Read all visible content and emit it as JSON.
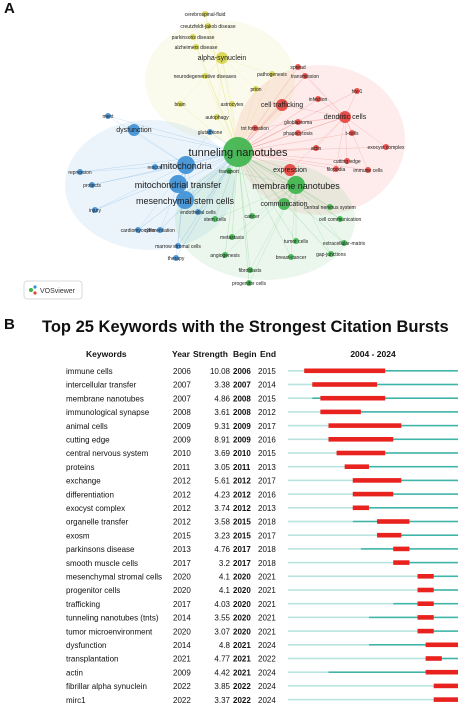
{
  "panel_a": {
    "letter": "A",
    "brand": "VOSviewer",
    "nodes": [
      {
        "label": "tunneling nanotubes",
        "cluster": "green",
        "size": 3
      },
      {
        "label": "membrane nanotubes",
        "cluster": "green",
        "size": 2
      },
      {
        "label": "mitochondria",
        "cluster": "blue",
        "size": 2
      },
      {
        "label": "mitochondrial transfer",
        "cluster": "blue",
        "size": 2
      },
      {
        "label": "mesenchymal stem cells",
        "cluster": "blue",
        "size": 2
      },
      {
        "label": "alpha-synuclein",
        "cluster": "yellow",
        "size": 1
      },
      {
        "label": "cerebrospinal-fluid",
        "cluster": "yellow",
        "size": 0
      },
      {
        "label": "creutzfeldt-jakob disease",
        "cluster": "yellow",
        "size": 0
      },
      {
        "label": "parkinsons disease",
        "cluster": "yellow",
        "size": 0
      },
      {
        "label": "alzheimers disease",
        "cluster": "yellow",
        "size": 0
      },
      {
        "label": "neurodegenerative diseases",
        "cluster": "yellow",
        "size": 0
      },
      {
        "label": "pathogenesis",
        "cluster": "yellow",
        "size": 0
      },
      {
        "label": "prion",
        "cluster": "yellow",
        "size": 0
      },
      {
        "label": "brain",
        "cluster": "yellow",
        "size": 0
      },
      {
        "label": "astrocytes",
        "cluster": "yellow",
        "size": 0
      },
      {
        "label": "autophagy",
        "cluster": "yellow",
        "size": 0
      },
      {
        "label": "spread",
        "cluster": "red",
        "size": 0
      },
      {
        "label": "transmission",
        "cluster": "red",
        "size": 0
      },
      {
        "label": "hiv-1",
        "cluster": "red",
        "size": 0
      },
      {
        "label": "infection",
        "cluster": "red",
        "size": 0
      },
      {
        "label": "cell trafficking",
        "cluster": "red",
        "size": 1
      },
      {
        "label": "dendritic cells",
        "cluster": "red",
        "size": 1
      },
      {
        "label": "t-cells",
        "cluster": "red",
        "size": 0
      },
      {
        "label": "exocyst complex",
        "cluster": "red",
        "size": 0
      },
      {
        "label": "cutting edge",
        "cluster": "red",
        "size": 0
      },
      {
        "label": "immune cells",
        "cluster": "red",
        "size": 0
      },
      {
        "label": "expression",
        "cluster": "red",
        "size": 1
      },
      {
        "label": "filopodia",
        "cluster": "red",
        "size": 0
      },
      {
        "label": "phagocytosis",
        "cluster": "red",
        "size": 0
      },
      {
        "label": "tnt formation",
        "cluster": "red",
        "size": 0
      },
      {
        "label": "glioblastoma",
        "cluster": "red",
        "size": 0
      },
      {
        "label": "actin",
        "cluster": "red",
        "size": 0
      },
      {
        "label": "transport",
        "cluster": "green",
        "size": 0
      },
      {
        "label": "communication",
        "cluster": "green",
        "size": 1
      },
      {
        "label": "central nervous system",
        "cluster": "green",
        "size": 0
      },
      {
        "label": "cell communication",
        "cluster": "green",
        "size": 0
      },
      {
        "label": "extracellular-matrix",
        "cluster": "green",
        "size": 0
      },
      {
        "label": "gap-junctions",
        "cluster": "green",
        "size": 0
      },
      {
        "label": "breast-cancer",
        "cluster": "green",
        "size": 0
      },
      {
        "label": "tumor cells",
        "cluster": "green",
        "size": 0
      },
      {
        "label": "cancer",
        "cluster": "green",
        "size": 0
      },
      {
        "label": "stem cells",
        "cluster": "green",
        "size": 0
      },
      {
        "label": "metastasis",
        "cluster": "green",
        "size": 0
      },
      {
        "label": "angiogenesis",
        "cluster": "green",
        "size": 0
      },
      {
        "label": "fibroblasts",
        "cluster": "green",
        "size": 0
      },
      {
        "label": "progenitor cells",
        "cluster": "green",
        "size": 0
      },
      {
        "label": "endothelial cells",
        "cluster": "blue",
        "size": 0
      },
      {
        "label": "dysfunction",
        "cluster": "blue",
        "size": 1
      },
      {
        "label": "rescue",
        "cluster": "blue",
        "size": 0
      },
      {
        "label": "repression",
        "cluster": "blue",
        "size": 0
      },
      {
        "label": "protects",
        "cluster": "blue",
        "size": 0
      },
      {
        "label": "injury",
        "cluster": "blue",
        "size": 0
      },
      {
        "label": "differentiation",
        "cluster": "blue",
        "size": 0
      },
      {
        "label": "cardiomyocytes",
        "cluster": "blue",
        "size": 0
      },
      {
        "label": "marrow stromal cells",
        "cluster": "blue",
        "size": 0
      },
      {
        "label": "therapy",
        "cluster": "blue",
        "size": 0
      },
      {
        "label": "ment",
        "cluster": "blue",
        "size": 0
      },
      {
        "label": "glutathione",
        "cluster": "blue",
        "size": 0
      }
    ]
  },
  "panel_b": {
    "letter": "B",
    "title": "Top 25 Keywords with the Strongest Citation Bursts",
    "headers": {
      "keywords": "Keywords",
      "year": "Year",
      "strength": "Strength",
      "begin": "Begin",
      "end": "End",
      "range": "2004 - 2024"
    },
    "colors": {
      "burst": "#e8231f",
      "active": "#3fb4a8",
      "before": "#b9e3de"
    },
    "chart_data": {
      "type": "table",
      "timeline_start": 2004,
      "timeline_end": 2024,
      "rows": [
        {
          "keyword": "immune cells",
          "year": "2006",
          "strength": "10.08",
          "begin": "2006",
          "end": "2015"
        },
        {
          "keyword": "intercellular transfer",
          "year": "2007",
          "strength": "3.38",
          "begin": "2007",
          "end": "2014"
        },
        {
          "keyword": "membrane nanotubes",
          "year": "2007",
          "strength": "4.86",
          "begin": "2008",
          "end": "2015"
        },
        {
          "keyword": "immunological synapse",
          "year": "2008",
          "strength": "3.61",
          "begin": "2008",
          "end": "2012"
        },
        {
          "keyword": "animal cells",
          "year": "2009",
          "strength": "9.31",
          "begin": "2009",
          "end": "2017"
        },
        {
          "keyword": "cutting edge",
          "year": "2009",
          "strength": "8.91",
          "begin": "2009",
          "end": "2016"
        },
        {
          "keyword": "central nervous system",
          "year": "2010",
          "strength": "3.69",
          "begin": "2010",
          "end": "2015"
        },
        {
          "keyword": "proteins",
          "year": "2011",
          "strength": "3.05",
          "begin": "2011",
          "end": "2013"
        },
        {
          "keyword": "exchange",
          "year": "2012",
          "strength": "5.61",
          "begin": "2012",
          "end": "2017"
        },
        {
          "keyword": "differentiation",
          "year": "2012",
          "strength": "4.23",
          "begin": "2012",
          "end": "2016"
        },
        {
          "keyword": "exocyst complex",
          "year": "2012",
          "strength": "3.74",
          "begin": "2012",
          "end": "2013"
        },
        {
          "keyword": "organelle transfer",
          "year": "2012",
          "strength": "3.58",
          "begin": "2015",
          "end": "2018"
        },
        {
          "keyword": "exosm",
          "year": "2015",
          "strength": "3.23",
          "begin": "2015",
          "end": "2017"
        },
        {
          "keyword": "parkinsons disease",
          "year": "2013",
          "strength": "4.76",
          "begin": "2017",
          "end": "2018"
        },
        {
          "keyword": "smooth muscle cells",
          "year": "2017",
          "strength": "3.2",
          "begin": "2017",
          "end": "2018"
        },
        {
          "keyword": "mesenchymal stromal cells",
          "year": "2020",
          "strength": "4.1",
          "begin": "2020",
          "end": "2021"
        },
        {
          "keyword": "progenitor cells",
          "year": "2020",
          "strength": "4.1",
          "begin": "2020",
          "end": "2021"
        },
        {
          "keyword": "trafficking",
          "year": "2017",
          "strength": "4.03",
          "begin": "2020",
          "end": "2021"
        },
        {
          "keyword": "tunneling nanotubes (tnts)",
          "year": "2014",
          "strength": "3.55",
          "begin": "2020",
          "end": "2021"
        },
        {
          "keyword": "tumor microenvironment",
          "year": "2020",
          "strength": "3.07",
          "begin": "2020",
          "end": "2021"
        },
        {
          "keyword": "dysfunction",
          "year": "2014",
          "strength": "4.8",
          "begin": "2021",
          "end": "2024"
        },
        {
          "keyword": "transplantation",
          "year": "2021",
          "strength": "4.77",
          "begin": "2021",
          "end": "2022"
        },
        {
          "keyword": "actin",
          "year": "2009",
          "strength": "4.42",
          "begin": "2021",
          "end": "2024"
        },
        {
          "keyword": "fibrillar alpha synuclein",
          "year": "2022",
          "strength": "3.85",
          "begin": "2022",
          "end": "2024"
        },
        {
          "keyword": "mirc1",
          "year": "2022",
          "strength": "3.37",
          "begin": "2022",
          "end": "2024"
        }
      ]
    }
  }
}
